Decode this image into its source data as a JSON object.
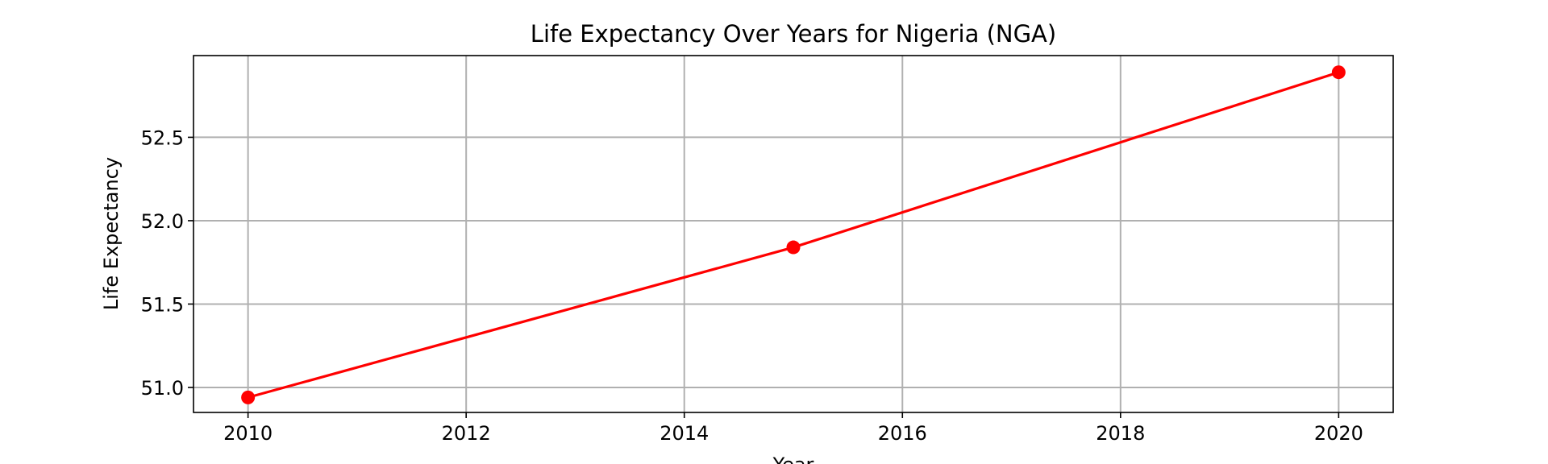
{
  "chart_data": {
    "type": "line",
    "title": "Life Expectancy Over Years for Nigeria (NGA)",
    "xlabel": "Year",
    "ylabel": "Life Expectancy",
    "xlim": [
      2009.5,
      2020.5
    ],
    "ylim": [
      50.85,
      52.99
    ],
    "x_ticks": [
      2010,
      2012,
      2014,
      2016,
      2018,
      2020
    ],
    "y_ticks": [
      51.0,
      51.5,
      52.0,
      52.5
    ],
    "y_tick_labels": [
      "51.0",
      "51.5",
      "52.0",
      "52.5"
    ],
    "grid": true,
    "series": [
      {
        "x": [
          2010,
          2015,
          2020
        ],
        "values": [
          50.94,
          51.84,
          52.89
        ],
        "color": "#ff0000",
        "marker": "circle"
      }
    ]
  }
}
